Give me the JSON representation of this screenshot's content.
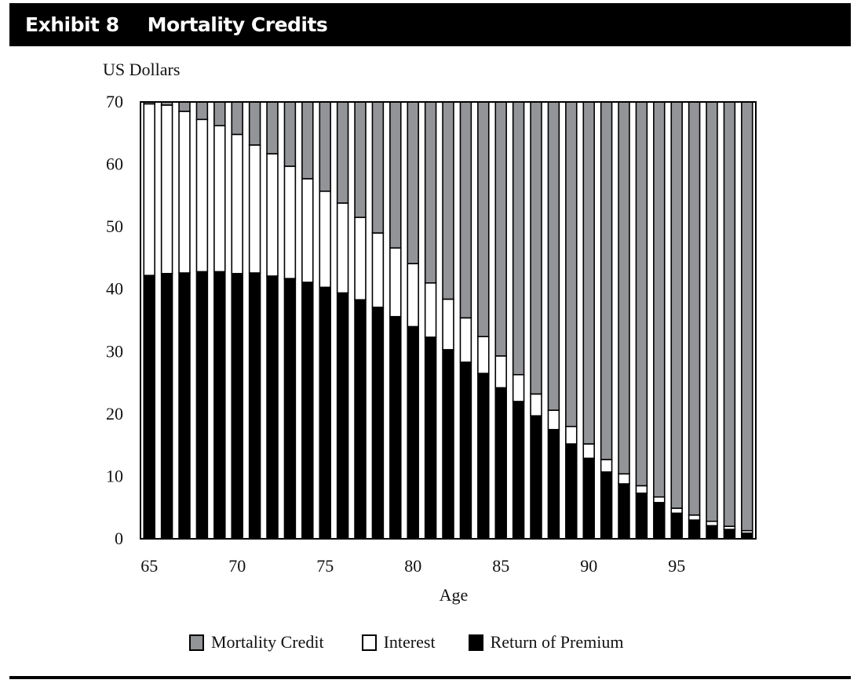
{
  "header": {
    "exhibit_label": "Exhibit 8",
    "title": "Mortality Credits"
  },
  "colors": {
    "mortality_credit": "#939498",
    "interest": "#ffffff",
    "return_of_premium": "#000000",
    "header_bg": "#000000"
  },
  "chart_data": {
    "type": "bar",
    "stacked": true,
    "title": "Mortality Credits",
    "xlabel": "Age",
    "ylabel": "US Dollars",
    "ylim": [
      0,
      70
    ],
    "yticks": [
      0,
      10,
      20,
      30,
      40,
      50,
      60,
      70
    ],
    "xticks": [
      65,
      70,
      75,
      80,
      85,
      90,
      95
    ],
    "grid": false,
    "legend_position": "bottom",
    "categories": [
      65,
      66,
      67,
      68,
      69,
      70,
      71,
      72,
      73,
      74,
      75,
      76,
      77,
      78,
      79,
      80,
      81,
      82,
      83,
      84,
      85,
      86,
      87,
      88,
      89,
      90,
      91,
      92,
      93,
      94,
      95,
      96,
      97,
      98,
      99
    ],
    "series": [
      {
        "name": "Return of Premium",
        "values": [
          42.2,
          42.5,
          42.6,
          42.8,
          42.8,
          42.5,
          42.6,
          42.1,
          41.7,
          41.1,
          40.3,
          39.4,
          38.3,
          37.1,
          35.6,
          34.0,
          32.3,
          30.3,
          28.3,
          26.5,
          24.2,
          22.0,
          19.7,
          17.5,
          15.2,
          12.9,
          10.7,
          8.8,
          7.3,
          5.8,
          4.1,
          3.0,
          2.1,
          1.5,
          0.9
        ]
      },
      {
        "name": "Interest",
        "values": [
          27.5,
          27.0,
          25.9,
          24.4,
          23.4,
          22.3,
          20.5,
          19.6,
          18.0,
          16.6,
          15.4,
          14.4,
          13.2,
          11.9,
          11.0,
          10.1,
          8.7,
          8.1,
          7.1,
          5.9,
          5.1,
          4.3,
          3.5,
          3.1,
          2.8,
          2.3,
          2.0,
          1.6,
          1.2,
          0.9,
          0.8,
          0.8,
          0.7,
          0.5,
          0.4
        ]
      },
      {
        "name": "Mortality Credit",
        "values": [
          0.3,
          0.5,
          1.5,
          2.8,
          3.8,
          5.2,
          6.9,
          8.3,
          10.3,
          12.3,
          14.3,
          16.2,
          18.5,
          21.0,
          23.4,
          25.9,
          29.0,
          31.6,
          34.6,
          37.6,
          40.7,
          43.7,
          46.8,
          49.4,
          52.0,
          54.8,
          57.3,
          59.6,
          61.5,
          63.3,
          65.1,
          66.2,
          67.2,
          68.0,
          68.7
        ]
      }
    ],
    "legend": [
      "Mortality Credit",
      "Interest",
      "Return of Premium"
    ]
  },
  "legend": {
    "items": [
      {
        "label": "Mortality Credit",
        "swatch": "#939498"
      },
      {
        "label": "Interest",
        "swatch": "#ffffff"
      },
      {
        "label": "Return of Premium",
        "swatch": "#000000"
      }
    ]
  }
}
